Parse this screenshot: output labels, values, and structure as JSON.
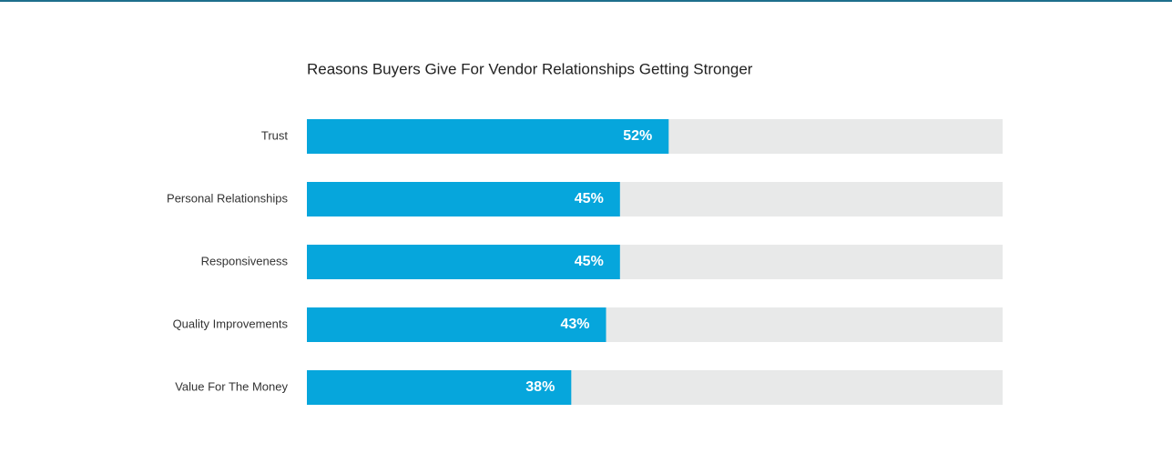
{
  "chart_data": {
    "type": "bar",
    "orientation": "horizontal",
    "title": "Reasons Buyers Give For Vendor Relationships Getting Stronger",
    "categories": [
      "Trust",
      "Personal Relationships",
      "Responsiveness",
      "Quality Improvements",
      "Value For The Money"
    ],
    "values": [
      52,
      45,
      45,
      43,
      38
    ],
    "value_labels": [
      "52%",
      "45%",
      "45%",
      "43%",
      "38%"
    ],
    "color": "#06a6dc",
    "track_color": "#e8e9e9",
    "xlim": [
      0,
      100
    ]
  }
}
